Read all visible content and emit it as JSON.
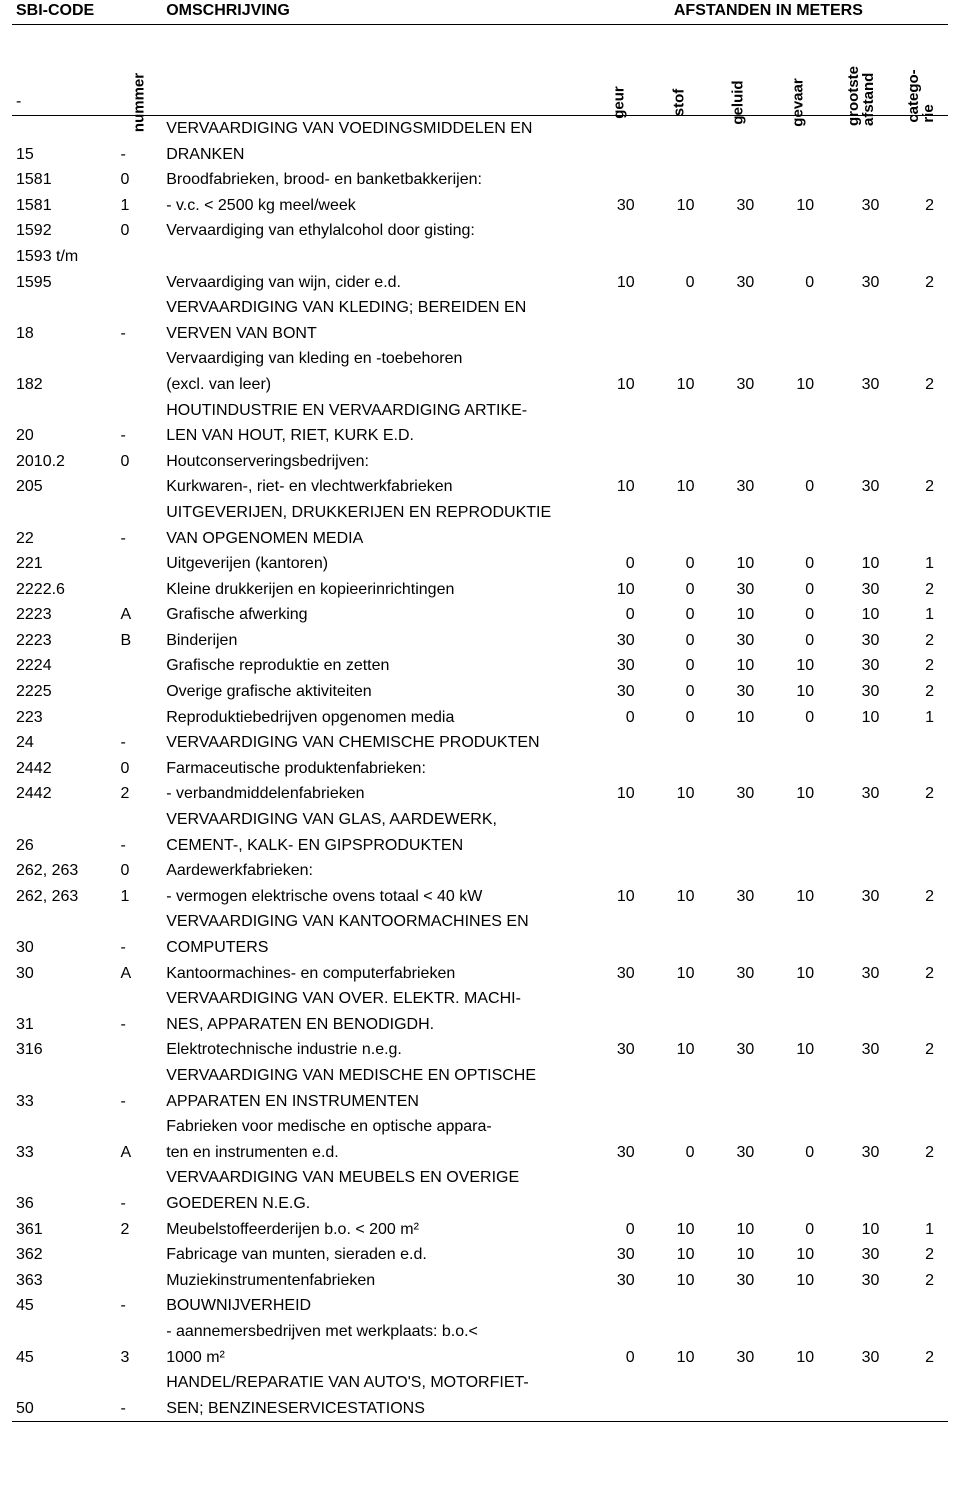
{
  "columns": {
    "sbi": "SBI-CODE",
    "desc": "OMSCHRIJVING",
    "afstanden": "AFSTANDEN IN METERS",
    "dash": "-",
    "num": "nummer",
    "geur": "geur",
    "stof": "stof",
    "geluid": "geluid",
    "gevaar": "gevaar",
    "groot1": "grootste",
    "groot2": "afstand",
    "cat1": "catego-",
    "cat2": "rie"
  },
  "rows": [
    {
      "sbi": "",
      "num": "",
      "desc": "VERVAARDIGING VAN VOEDINGSMIDDELEN EN",
      "v": [
        "",
        "",
        "",
        "",
        "",
        ""
      ]
    },
    {
      "sbi": "15",
      "num": "-",
      "desc": "DRANKEN",
      "v": [
        "",
        "",
        "",
        "",
        "",
        ""
      ]
    },
    {
      "sbi": "1581",
      "num": "0",
      "desc": "Broodfabrieken, brood- en banketbakkerijen:",
      "v": [
        "",
        "",
        "",
        "",
        "",
        ""
      ]
    },
    {
      "sbi": "1581",
      "num": "1",
      "desc": "- v.c. < 2500 kg meel/week",
      "v": [
        "30",
        "10",
        "30",
        "10",
        "30",
        "2"
      ]
    },
    {
      "sbi": "1592",
      "num": "0",
      "desc": "Vervaardiging van ethylalcohol door gisting:",
      "v": [
        "",
        "",
        "",
        "",
        "",
        ""
      ]
    },
    {
      "sbi": "1593 t/m",
      "num": "",
      "desc": "",
      "v": [
        "",
        "",
        "",
        "",
        "",
        ""
      ]
    },
    {
      "sbi": "1595",
      "num": "",
      "desc": "Vervaardiging van wijn, cider e.d.",
      "v": [
        "10",
        "0",
        "30",
        "0",
        "30",
        "2"
      ]
    },
    {
      "sbi": "",
      "num": "",
      "desc": "VERVAARDIGING VAN KLEDING; BEREIDEN EN",
      "v": [
        "",
        "",
        "",
        "",
        "",
        ""
      ]
    },
    {
      "sbi": "18",
      "num": "-",
      "desc": "VERVEN VAN BONT",
      "v": [
        "",
        "",
        "",
        "",
        "",
        ""
      ]
    },
    {
      "sbi": "",
      "num": "",
      "desc": "Vervaardiging van kleding en -toebehoren",
      "v": [
        "",
        "",
        "",
        "",
        "",
        ""
      ]
    },
    {
      "sbi": "182",
      "num": "",
      "desc": "(excl. van leer)",
      "v": [
        "10",
        "10",
        "30",
        "10",
        "30",
        "2"
      ]
    },
    {
      "sbi": "",
      "num": "",
      "desc": "HOUTINDUSTRIE EN VERVAARDIGING ARTIKE-",
      "v": [
        "",
        "",
        "",
        "",
        "",
        ""
      ]
    },
    {
      "sbi": "20",
      "num": "-",
      "desc": "LEN VAN HOUT, RIET, KURK E.D.",
      "v": [
        "",
        "",
        "",
        "",
        "",
        ""
      ]
    },
    {
      "sbi": "2010.2",
      "num": "0",
      "desc": "Houtconserveringsbedrijven:",
      "v": [
        "",
        "",
        "",
        "",
        "",
        ""
      ]
    },
    {
      "sbi": "205",
      "num": "",
      "desc": "Kurkwaren-, riet- en vlechtwerkfabrieken",
      "v": [
        "10",
        "10",
        "30",
        "0",
        "30",
        "2"
      ]
    },
    {
      "sbi": "",
      "num": "",
      "desc": "UITGEVERIJEN, DRUKKERIJEN EN REPRODUKTIE",
      "v": [
        "",
        "",
        "",
        "",
        "",
        ""
      ]
    },
    {
      "sbi": "22",
      "num": "-",
      "desc": "VAN OPGENOMEN MEDIA",
      "v": [
        "",
        "",
        "",
        "",
        "",
        ""
      ]
    },
    {
      "sbi": "221",
      "num": "",
      "desc": "Uitgeverijen (kantoren)",
      "v": [
        "0",
        "0",
        "10",
        "0",
        "10",
        "1"
      ]
    },
    {
      "sbi": "2222.6",
      "num": "",
      "desc": "Kleine drukkerijen en kopieerinrichtingen",
      "v": [
        "10",
        "0",
        "30",
        "0",
        "30",
        "2"
      ]
    },
    {
      "sbi": "2223",
      "num": "A",
      "desc": "Grafische afwerking",
      "v": [
        "0",
        "0",
        "10",
        "0",
        "10",
        "1"
      ]
    },
    {
      "sbi": "2223",
      "num": "B",
      "desc": "Binderijen",
      "v": [
        "30",
        "0",
        "30",
        "0",
        "30",
        "2"
      ]
    },
    {
      "sbi": "2224",
      "num": "",
      "desc": "Grafische reproduktie en zetten",
      "v": [
        "30",
        "0",
        "10",
        "10",
        "30",
        "2"
      ]
    },
    {
      "sbi": "2225",
      "num": "",
      "desc": "Overige grafische aktiviteiten",
      "v": [
        "30",
        "0",
        "30",
        "10",
        "30",
        "2"
      ]
    },
    {
      "sbi": "223",
      "num": "",
      "desc": "Reproduktiebedrijven opgenomen media",
      "v": [
        "0",
        "0",
        "10",
        "0",
        "10",
        "1"
      ]
    },
    {
      "sbi": "24",
      "num": "-",
      "desc": "VERVAARDIGING VAN CHEMISCHE PRODUKTEN",
      "v": [
        "",
        "",
        "",
        "",
        "",
        ""
      ]
    },
    {
      "sbi": "2442",
      "num": "0",
      "desc": "Farmaceutische produktenfabrieken:",
      "v": [
        "",
        "",
        "",
        "",
        "",
        ""
      ]
    },
    {
      "sbi": "2442",
      "num": "2",
      "desc": "- verbandmiddelenfabrieken",
      "v": [
        "10",
        "10",
        "30",
        "10",
        "30",
        "2"
      ]
    },
    {
      "sbi": "",
      "num": "",
      "desc": "VERVAARDIGING VAN GLAS, AARDEWERK,",
      "v": [
        "",
        "",
        "",
        "",
        "",
        ""
      ]
    },
    {
      "sbi": "26",
      "num": "-",
      "desc": "CEMENT-, KALK- EN GIPSPRODUKTEN",
      "v": [
        "",
        "",
        "",
        "",
        "",
        ""
      ]
    },
    {
      "sbi": "262, 263",
      "num": "0",
      "desc": "Aardewerkfabrieken:",
      "v": [
        "",
        "",
        "",
        "",
        "",
        ""
      ]
    },
    {
      "sbi": "262, 263",
      "num": "1",
      "desc": "- vermogen elektrische ovens totaal < 40 kW",
      "v": [
        "10",
        "10",
        "30",
        "10",
        "30",
        "2"
      ]
    },
    {
      "sbi": "",
      "num": "",
      "desc": "VERVAARDIGING VAN KANTOORMACHINES EN",
      "v": [
        "",
        "",
        "",
        "",
        "",
        ""
      ]
    },
    {
      "sbi": "30",
      "num": "-",
      "desc": "COMPUTERS",
      "v": [
        "",
        "",
        "",
        "",
        "",
        ""
      ]
    },
    {
      "sbi": "30",
      "num": "A",
      "desc": "Kantoormachines- en computerfabrieken",
      "v": [
        "30",
        "10",
        "30",
        "10",
        "30",
        "2"
      ]
    },
    {
      "sbi": "",
      "num": "",
      "desc": "VERVAARDIGING VAN OVER. ELEKTR. MACHI-",
      "v": [
        "",
        "",
        "",
        "",
        "",
        ""
      ]
    },
    {
      "sbi": "31",
      "num": "-",
      "desc": "NES, APPARATEN EN BENODIGDH.",
      "v": [
        "",
        "",
        "",
        "",
        "",
        ""
      ]
    },
    {
      "sbi": "316",
      "num": "",
      "desc": "Elektrotechnische industrie n.e.g.",
      "v": [
        "30",
        "10",
        "30",
        "10",
        "30",
        "2"
      ]
    },
    {
      "sbi": "",
      "num": "",
      "desc": "VERVAARDIGING VAN MEDISCHE EN OPTISCHE",
      "v": [
        "",
        "",
        "",
        "",
        "",
        ""
      ]
    },
    {
      "sbi": "33",
      "num": "-",
      "desc": "APPARATEN EN INSTRUMENTEN",
      "v": [
        "",
        "",
        "",
        "",
        "",
        ""
      ]
    },
    {
      "sbi": "",
      "num": "",
      "desc": "Fabrieken voor medische en optische appara-",
      "v": [
        "",
        "",
        "",
        "",
        "",
        ""
      ]
    },
    {
      "sbi": "33",
      "num": "A",
      "desc": "ten en instrumenten e.d.",
      "v": [
        "30",
        "0",
        "30",
        "0",
        "30",
        "2"
      ]
    },
    {
      "sbi": "",
      "num": "",
      "desc": "VERVAARDIGING VAN MEUBELS EN OVERIGE",
      "v": [
        "",
        "",
        "",
        "",
        "",
        ""
      ]
    },
    {
      "sbi": "36",
      "num": "-",
      "desc": "GOEDEREN N.E.G.",
      "v": [
        "",
        "",
        "",
        "",
        "",
        ""
      ]
    },
    {
      "sbi": "361",
      "num": "2",
      "desc": "Meubelstoffeerderijen b.o. < 200 m²",
      "v": [
        "0",
        "10",
        "10",
        "0",
        "10",
        "1"
      ]
    },
    {
      "sbi": "362",
      "num": "",
      "desc": "Fabricage van munten, sieraden e.d.",
      "v": [
        "30",
        "10",
        "10",
        "10",
        "30",
        "2"
      ]
    },
    {
      "sbi": "363",
      "num": "",
      "desc": "Muziekinstrumentenfabrieken",
      "v": [
        "30",
        "10",
        "30",
        "10",
        "30",
        "2"
      ]
    },
    {
      "sbi": "45",
      "num": "-",
      "desc": "BOUWNIJVERHEID",
      "v": [
        "",
        "",
        "",
        "",
        "",
        ""
      ]
    },
    {
      "sbi": "",
      "num": "",
      "desc": "- aannemersbedrijven met werkplaats: b.o.<",
      "v": [
        "",
        "",
        "",
        "",
        "",
        ""
      ]
    },
    {
      "sbi": "45",
      "num": "3",
      "desc": "1000 m²",
      "v": [
        "0",
        "10",
        "30",
        "10",
        "30",
        "2"
      ]
    },
    {
      "sbi": "",
      "num": "",
      "desc": "HANDEL/REPARATIE VAN AUTO'S, MOTORFIET-",
      "v": [
        "",
        "",
        "",
        "",
        "",
        ""
      ]
    },
    {
      "sbi": "50",
      "num": "-",
      "desc": "SEN; BENZINESERVICESTATIONS",
      "v": [
        "",
        "",
        "",
        "",
        "",
        ""
      ]
    }
  ]
}
